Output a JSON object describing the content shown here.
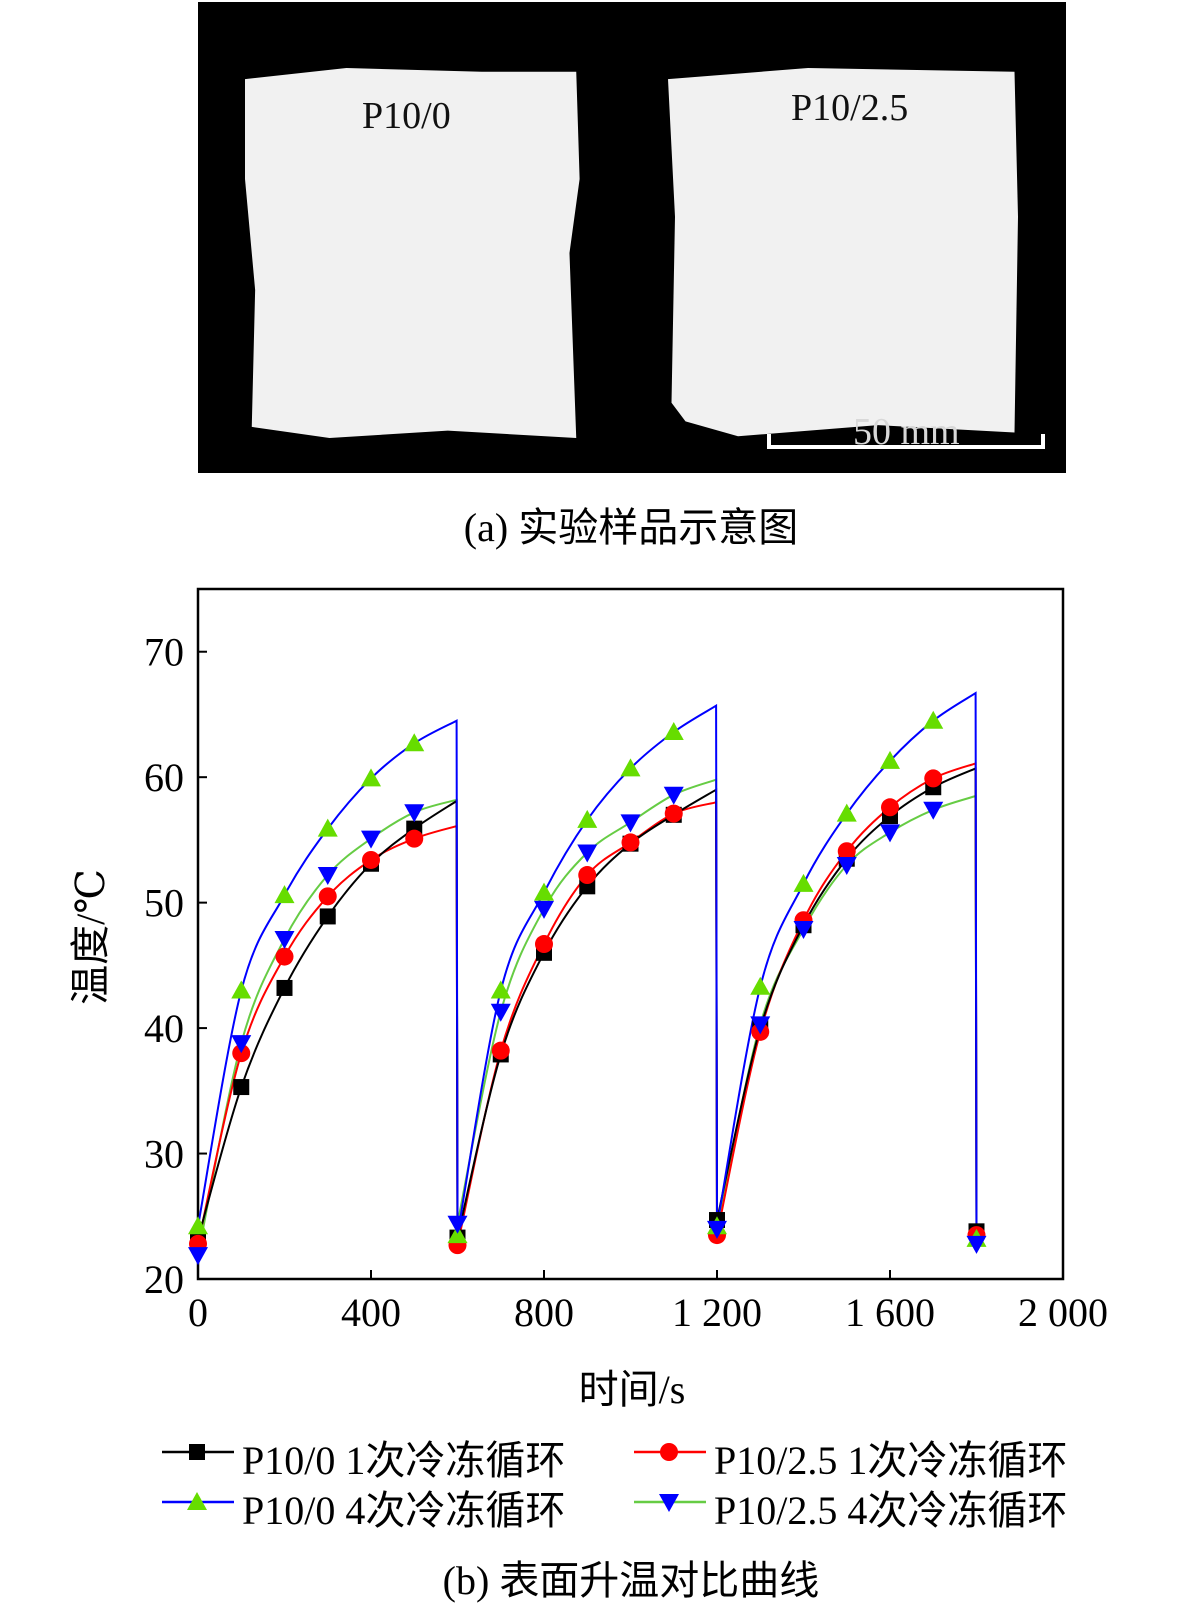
{
  "panel_a": {
    "sample_left_label": "P10/0",
    "sample_right_label": "P10/2.5",
    "scale_bar_label": "50 mm",
    "caption": "(a) 实验样品示意图"
  },
  "panel_b": {
    "caption": "(b) 表面升温对比曲线"
  },
  "chart_data": {
    "type": "line",
    "title": "",
    "xlabel": "时间/s",
    "ylabel": "温度/℃",
    "xlim": [
      0,
      2000
    ],
    "ylim": [
      20,
      75
    ],
    "x_ticks": [
      0,
      400,
      800,
      1200,
      1600,
      2000
    ],
    "x_tick_labels": [
      "0",
      "400",
      "800",
      "1 200",
      "1 600",
      "2 000"
    ],
    "y_ticks": [
      20,
      30,
      40,
      50,
      60,
      70
    ],
    "y_tick_labels": [
      "20",
      "30",
      "40",
      "50",
      "60",
      "70"
    ],
    "grid": false,
    "legend_position": "bottom",
    "series": [
      {
        "name": "P10/0 1次冷冻循环",
        "color": "#000000",
        "marker": "square",
        "x": [
          0,
          100,
          200,
          300,
          400,
          500,
          600,
          700,
          800,
          900,
          1000,
          1100,
          1200,
          1300,
          1400,
          1500,
          1600,
          1700,
          1800
        ],
        "y": [
          23.2,
          35.3,
          43.2,
          48.9,
          53.1,
          55.9,
          23.3,
          37.9,
          46.0,
          51.3,
          54.7,
          57.0,
          24.7,
          40.0,
          48.2,
          53.5,
          56.9,
          59.2,
          23.8
        ],
        "curve_end": [
          [
            598,
            58.1
          ],
          [
            1198,
            59.0
          ],
          [
            1798,
            60.7
          ]
        ]
      },
      {
        "name": "P10/2.5 1次冷冻循环",
        "color": "#ff0000",
        "marker": "circle",
        "x": [
          0,
          100,
          200,
          300,
          400,
          500,
          600,
          700,
          800,
          900,
          1000,
          1100,
          1200,
          1300,
          1400,
          1500,
          1600,
          1700,
          1800
        ],
        "y": [
          22.8,
          38.0,
          45.7,
          50.5,
          53.4,
          55.1,
          22.7,
          38.2,
          46.7,
          52.2,
          54.8,
          57.1,
          23.5,
          39.7,
          48.6,
          54.1,
          57.6,
          59.9,
          23.5
        ],
        "curve_end": [
          [
            598,
            56.1
          ],
          [
            1198,
            58.0
          ],
          [
            1798,
            61.1
          ]
        ]
      },
      {
        "name": "P10/0 4次冷冻循环",
        "color": "#0000ff",
        "marker": "triangle-up",
        "marker_color": "#66dd00",
        "x": [
          0,
          100,
          200,
          300,
          400,
          500,
          600,
          700,
          800,
          900,
          1000,
          1100,
          1200,
          1300,
          1400,
          1500,
          1600,
          1700,
          1800
        ],
        "y": [
          24.2,
          43.0,
          50.6,
          55.9,
          59.9,
          62.7,
          23.5,
          43.0,
          50.8,
          56.6,
          60.7,
          63.6,
          24.2,
          43.3,
          51.5,
          57.1,
          61.3,
          64.5,
          23.2
        ],
        "curve_end": [
          [
            598,
            64.5
          ],
          [
            1198,
            65.7
          ],
          [
            1798,
            66.7
          ]
        ]
      },
      {
        "name": "P10/2.5 4次冷冻循环",
        "color": "#66cc44",
        "marker": "triangle-down",
        "marker_color": "#0000ff",
        "x": [
          0,
          100,
          200,
          300,
          400,
          500,
          600,
          700,
          800,
          900,
          1000,
          1100,
          1200,
          1300,
          1400,
          1500,
          1600,
          1700,
          1800
        ],
        "y": [
          21.9,
          38.8,
          47.1,
          52.2,
          55.1,
          57.2,
          24.4,
          41.3,
          49.5,
          54.0,
          56.4,
          58.6,
          24.0,
          40.3,
          47.9,
          53.0,
          55.6,
          57.4,
          22.8
        ],
        "curve_end": [
          [
            598,
            58.2
          ],
          [
            1198,
            59.8
          ],
          [
            1798,
            58.5
          ]
        ]
      }
    ]
  }
}
